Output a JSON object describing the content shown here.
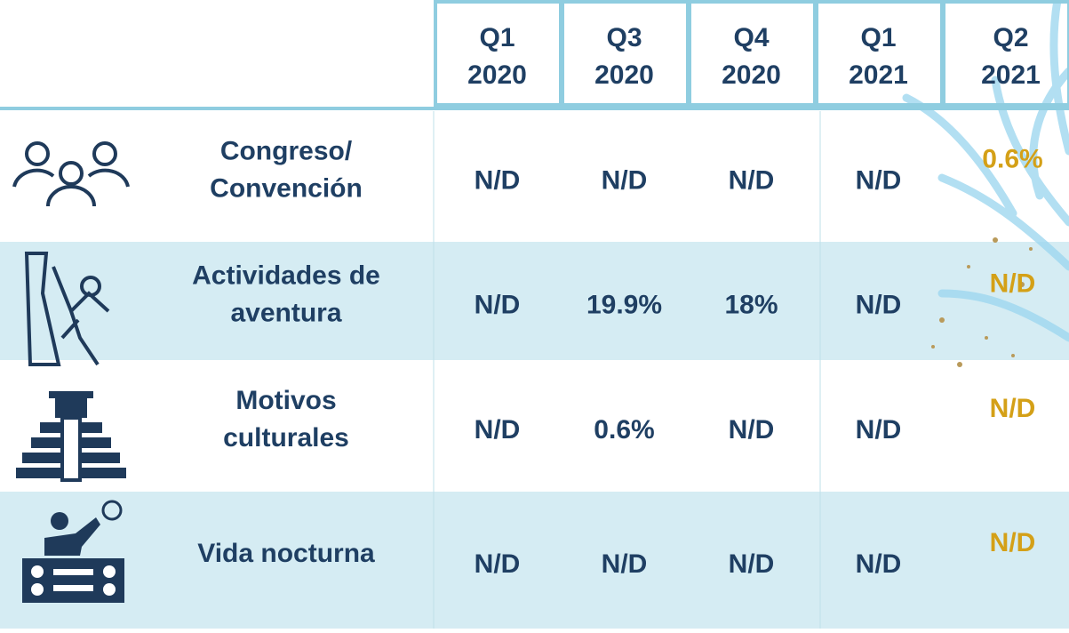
{
  "table": {
    "columns": [
      {
        "quarter": "Q1",
        "year": "2020"
      },
      {
        "quarter": "Q3",
        "year": "2020"
      },
      {
        "quarter": "Q4",
        "year": "2020"
      },
      {
        "quarter": "Q1",
        "year": "2021"
      },
      {
        "quarter": "Q2",
        "year": "2021"
      }
    ],
    "rows": [
      {
        "label": [
          "Congreso/",
          "Convención"
        ],
        "values": [
          "N/D",
          "N/D",
          "N/D",
          "N/D",
          "0.6%"
        ]
      },
      {
        "label": [
          "Actividades de",
          "aventura"
        ],
        "values": [
          "N/D",
          "19.9%",
          "18%",
          "N/D",
          "N/D"
        ]
      },
      {
        "label": [
          "Motivos",
          "culturales"
        ],
        "values": [
          "N/D",
          "0.6%",
          "N/D",
          "N/D",
          "N/D"
        ]
      },
      {
        "label": [
          "Vida nocturna"
        ],
        "values": [
          "N/D",
          "N/D",
          "N/D",
          "N/D",
          "N/D"
        ]
      }
    ]
  }
}
